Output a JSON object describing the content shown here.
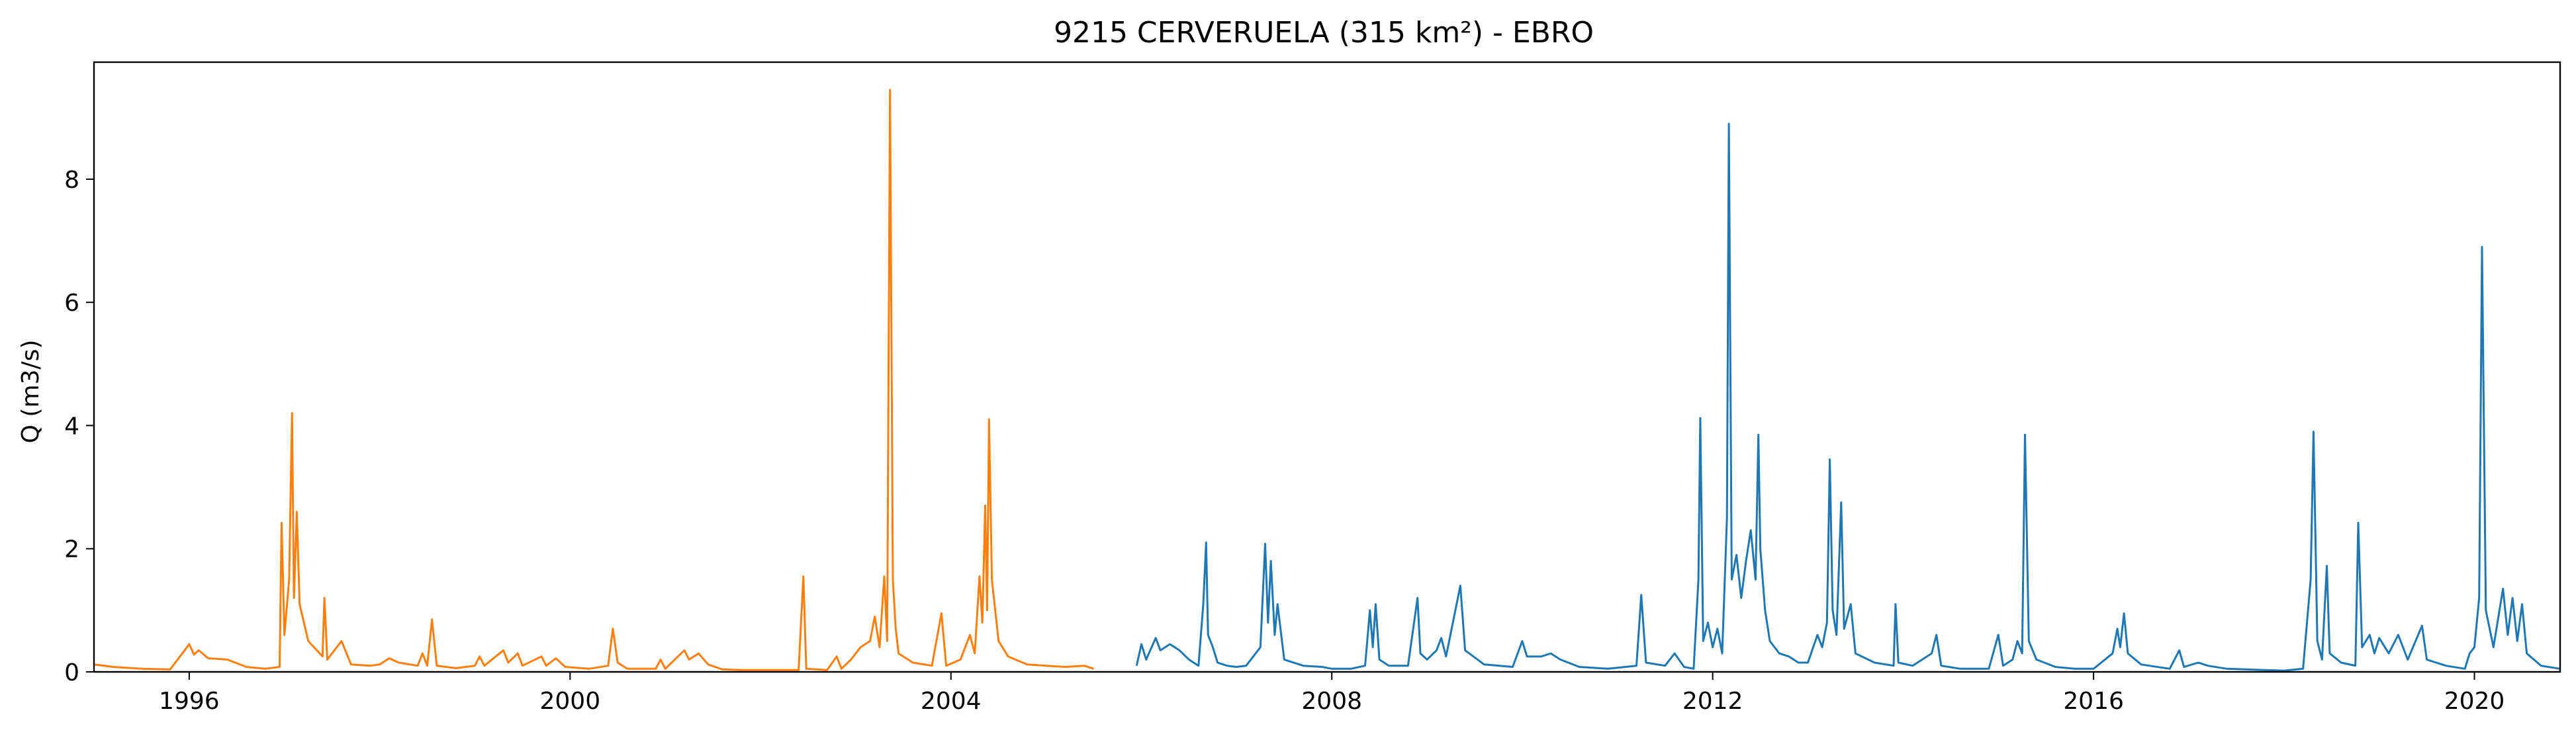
{
  "chart_data": {
    "type": "line",
    "title": "9215 CERVERUELA (315 km²) - EBRO",
    "xlabel": "",
    "ylabel": "Q (m3/s)",
    "xlim": [
      1995.0,
      2020.9
    ],
    "ylim": [
      0,
      9.9
    ],
    "grid": false,
    "x_ticks": [
      1996,
      2000,
      2004,
      2008,
      2012,
      2016,
      2020
    ],
    "x_tick_labels": [
      "1996",
      "2000",
      "2004",
      "2008",
      "2012",
      "2016",
      "2020"
    ],
    "y_ticks": [
      0,
      2,
      4,
      6,
      8
    ],
    "y_tick_labels": [
      "0",
      "2",
      "4",
      "6",
      "8"
    ],
    "series": [
      {
        "color": "#ff7f0e",
        "points": [
          [
            1995.0,
            0.12
          ],
          [
            1995.2,
            0.08
          ],
          [
            1995.5,
            0.05
          ],
          [
            1995.8,
            0.04
          ],
          [
            1996.0,
            0.45
          ],
          [
            1996.05,
            0.28
          ],
          [
            1996.1,
            0.35
          ],
          [
            1996.2,
            0.22
          ],
          [
            1996.4,
            0.2
          ],
          [
            1996.6,
            0.08
          ],
          [
            1996.8,
            0.05
          ],
          [
            1996.95,
            0.08
          ],
          [
            1996.97,
            2.42
          ],
          [
            1997.0,
            0.6
          ],
          [
            1997.05,
            1.5
          ],
          [
            1997.08,
            4.2
          ],
          [
            1997.1,
            1.2
          ],
          [
            1997.13,
            2.6
          ],
          [
            1997.16,
            1.1
          ],
          [
            1997.25,
            0.5
          ],
          [
            1997.4,
            0.25
          ],
          [
            1997.42,
            1.2
          ],
          [
            1997.45,
            0.2
          ],
          [
            1997.6,
            0.5
          ],
          [
            1997.7,
            0.12
          ],
          [
            1997.9,
            0.1
          ],
          [
            1998.0,
            0.12
          ],
          [
            1998.1,
            0.22
          ],
          [
            1998.2,
            0.15
          ],
          [
            1998.4,
            0.1
          ],
          [
            1998.45,
            0.3
          ],
          [
            1998.5,
            0.1
          ],
          [
            1998.55,
            0.85
          ],
          [
            1998.6,
            0.1
          ],
          [
            1998.8,
            0.06
          ],
          [
            1999.0,
            0.1
          ],
          [
            1999.05,
            0.25
          ],
          [
            1999.1,
            0.1
          ],
          [
            1999.3,
            0.35
          ],
          [
            1999.35,
            0.15
          ],
          [
            1999.45,
            0.3
          ],
          [
            1999.5,
            0.1
          ],
          [
            1999.7,
            0.25
          ],
          [
            1999.75,
            0.1
          ],
          [
            1999.85,
            0.22
          ],
          [
            1999.95,
            0.08
          ],
          [
            2000.2,
            0.05
          ],
          [
            2000.4,
            0.1
          ],
          [
            2000.45,
            0.7
          ],
          [
            2000.5,
            0.15
          ],
          [
            2000.6,
            0.05
          ],
          [
            2000.9,
            0.05
          ],
          [
            2000.95,
            0.2
          ],
          [
            2001.0,
            0.05
          ],
          [
            2001.2,
            0.35
          ],
          [
            2001.25,
            0.2
          ],
          [
            2001.35,
            0.3
          ],
          [
            2001.45,
            0.12
          ],
          [
            2001.6,
            0.04
          ],
          [
            2001.8,
            0.03
          ],
          [
            2002.0,
            0.03
          ],
          [
            2002.2,
            0.03
          ],
          [
            2002.4,
            0.03
          ],
          [
            2002.45,
            1.55
          ],
          [
            2002.48,
            0.05
          ],
          [
            2002.7,
            0.03
          ],
          [
            2002.8,
            0.25
          ],
          [
            2002.85,
            0.05
          ],
          [
            2002.95,
            0.2
          ],
          [
            2003.05,
            0.4
          ],
          [
            2003.15,
            0.5
          ],
          [
            2003.2,
            0.9
          ],
          [
            2003.25,
            0.4
          ],
          [
            2003.3,
            1.55
          ],
          [
            2003.33,
            0.5
          ],
          [
            2003.36,
            9.45
          ],
          [
            2003.39,
            1.5
          ],
          [
            2003.42,
            0.7
          ],
          [
            2003.45,
            0.3
          ],
          [
            2003.6,
            0.15
          ],
          [
            2003.8,
            0.1
          ],
          [
            2003.9,
            0.95
          ],
          [
            2003.95,
            0.1
          ],
          [
            2004.1,
            0.2
          ],
          [
            2004.2,
            0.6
          ],
          [
            2004.25,
            0.3
          ],
          [
            2004.3,
            1.55
          ],
          [
            2004.33,
            0.8
          ],
          [
            2004.36,
            2.7
          ],
          [
            2004.38,
            1.0
          ],
          [
            2004.4,
            4.1
          ],
          [
            2004.43,
            1.5
          ],
          [
            2004.5,
            0.5
          ],
          [
            2004.6,
            0.25
          ],
          [
            2004.8,
            0.12
          ],
          [
            2005.0,
            0.1
          ],
          [
            2005.2,
            0.08
          ],
          [
            2005.4,
            0.1
          ],
          [
            2005.5,
            0.05
          ]
        ]
      },
      {
        "color": "#1f77b4",
        "points": [
          [
            2005.95,
            0.1
          ],
          [
            2006.0,
            0.45
          ],
          [
            2006.05,
            0.2
          ],
          [
            2006.15,
            0.55
          ],
          [
            2006.2,
            0.35
          ],
          [
            2006.3,
            0.45
          ],
          [
            2006.4,
            0.35
          ],
          [
            2006.5,
            0.2
          ],
          [
            2006.6,
            0.1
          ],
          [
            2006.65,
            1.1
          ],
          [
            2006.68,
            2.1
          ],
          [
            2006.7,
            0.6
          ],
          [
            2006.75,
            0.4
          ],
          [
            2006.8,
            0.15
          ],
          [
            2006.9,
            0.1
          ],
          [
            2007.0,
            0.08
          ],
          [
            2007.1,
            0.1
          ],
          [
            2007.15,
            0.2
          ],
          [
            2007.25,
            0.4
          ],
          [
            2007.3,
            2.08
          ],
          [
            2007.33,
            0.8
          ],
          [
            2007.36,
            1.8
          ],
          [
            2007.4,
            0.6
          ],
          [
            2007.43,
            1.1
          ],
          [
            2007.5,
            0.2
          ],
          [
            2007.7,
            0.1
          ],
          [
            2007.9,
            0.08
          ],
          [
            2008.0,
            0.05
          ],
          [
            2008.2,
            0.05
          ],
          [
            2008.35,
            0.1
          ],
          [
            2008.4,
            1.0
          ],
          [
            2008.43,
            0.4
          ],
          [
            2008.46,
            1.1
          ],
          [
            2008.5,
            0.2
          ],
          [
            2008.6,
            0.1
          ],
          [
            2008.8,
            0.1
          ],
          [
            2008.9,
            1.2
          ],
          [
            2008.93,
            0.3
          ],
          [
            2009.0,
            0.2
          ],
          [
            2009.1,
            0.35
          ],
          [
            2009.15,
            0.55
          ],
          [
            2009.2,
            0.25
          ],
          [
            2009.35,
            1.4
          ],
          [
            2009.4,
            0.35
          ],
          [
            2009.6,
            0.12
          ],
          [
            2009.9,
            0.08
          ],
          [
            2010.0,
            0.5
          ],
          [
            2010.05,
            0.25
          ],
          [
            2010.2,
            0.25
          ],
          [
            2010.3,
            0.3
          ],
          [
            2010.4,
            0.2
          ],
          [
            2010.6,
            0.08
          ],
          [
            2010.9,
            0.05
          ],
          [
            2011.2,
            0.1
          ],
          [
            2011.25,
            1.25
          ],
          [
            2011.3,
            0.15
          ],
          [
            2011.5,
            0.1
          ],
          [
            2011.6,
            0.3
          ],
          [
            2011.7,
            0.08
          ],
          [
            2011.8,
            0.05
          ],
          [
            2011.85,
            1.5
          ],
          [
            2011.87,
            4.12
          ],
          [
            2011.9,
            0.5
          ],
          [
            2011.95,
            0.8
          ],
          [
            2012.0,
            0.4
          ],
          [
            2012.05,
            0.7
          ],
          [
            2012.1,
            0.3
          ],
          [
            2012.15,
            2.5
          ],
          [
            2012.17,
            8.9
          ],
          [
            2012.2,
            1.5
          ],
          [
            2012.25,
            1.9
          ],
          [
            2012.3,
            1.2
          ],
          [
            2012.35,
            1.8
          ],
          [
            2012.4,
            2.3
          ],
          [
            2012.45,
            1.5
          ],
          [
            2012.48,
            3.85
          ],
          [
            2012.5,
            2.0
          ],
          [
            2012.55,
            1.0
          ],
          [
            2012.6,
            0.5
          ],
          [
            2012.7,
            0.3
          ],
          [
            2012.8,
            0.25
          ],
          [
            2012.9,
            0.15
          ],
          [
            2013.0,
            0.15
          ],
          [
            2013.1,
            0.6
          ],
          [
            2013.15,
            0.4
          ],
          [
            2013.2,
            0.8
          ],
          [
            2013.23,
            3.45
          ],
          [
            2013.26,
            1.0
          ],
          [
            2013.3,
            0.6
          ],
          [
            2013.35,
            2.75
          ],
          [
            2013.38,
            0.7
          ],
          [
            2013.45,
            1.1
          ],
          [
            2013.5,
            0.3
          ],
          [
            2013.7,
            0.15
          ],
          [
            2013.9,
            0.1
          ],
          [
            2013.92,
            1.1
          ],
          [
            2013.95,
            0.15
          ],
          [
            2014.1,
            0.1
          ],
          [
            2014.3,
            0.3
          ],
          [
            2014.35,
            0.6
          ],
          [
            2014.4,
            0.1
          ],
          [
            2014.6,
            0.05
          ],
          [
            2014.9,
            0.05
          ],
          [
            2015.0,
            0.6
          ],
          [
            2015.05,
            0.1
          ],
          [
            2015.15,
            0.2
          ],
          [
            2015.2,
            0.5
          ],
          [
            2015.25,
            0.3
          ],
          [
            2015.28,
            3.85
          ],
          [
            2015.32,
            0.5
          ],
          [
            2015.4,
            0.2
          ],
          [
            2015.6,
            0.08
          ],
          [
            2015.8,
            0.05
          ],
          [
            2016.0,
            0.05
          ],
          [
            2016.2,
            0.3
          ],
          [
            2016.25,
            0.7
          ],
          [
            2016.28,
            0.4
          ],
          [
            2016.32,
            0.95
          ],
          [
            2016.36,
            0.3
          ],
          [
            2016.5,
            0.12
          ],
          [
            2016.8,
            0.05
          ],
          [
            2016.9,
            0.35
          ],
          [
            2016.95,
            0.08
          ],
          [
            2017.1,
            0.15
          ],
          [
            2017.2,
            0.1
          ],
          [
            2017.4,
            0.05
          ],
          [
            2017.8,
            0.03
          ],
          [
            2018.0,
            0.02
          ],
          [
            2018.2,
            0.05
          ],
          [
            2018.28,
            1.5
          ],
          [
            2018.31,
            3.9
          ],
          [
            2018.35,
            0.5
          ],
          [
            2018.4,
            0.2
          ],
          [
            2018.45,
            1.72
          ],
          [
            2018.48,
            0.3
          ],
          [
            2018.6,
            0.15
          ],
          [
            2018.75,
            0.1
          ],
          [
            2018.78,
            2.42
          ],
          [
            2018.82,
            0.4
          ],
          [
            2018.9,
            0.6
          ],
          [
            2018.95,
            0.3
          ],
          [
            2019.0,
            0.55
          ],
          [
            2019.1,
            0.3
          ],
          [
            2019.2,
            0.6
          ],
          [
            2019.3,
            0.2
          ],
          [
            2019.45,
            0.75
          ],
          [
            2019.5,
            0.2
          ],
          [
            2019.7,
            0.1
          ],
          [
            2019.9,
            0.05
          ],
          [
            2019.95,
            0.3
          ],
          [
            2020.0,
            0.4
          ],
          [
            2020.05,
            1.2
          ],
          [
            2020.08,
            6.9
          ],
          [
            2020.12,
            1.0
          ],
          [
            2020.2,
            0.4
          ],
          [
            2020.3,
            1.35
          ],
          [
            2020.35,
            0.6
          ],
          [
            2020.4,
            1.2
          ],
          [
            2020.45,
            0.5
          ],
          [
            2020.5,
            1.1
          ],
          [
            2020.55,
            0.3
          ],
          [
            2020.7,
            0.1
          ],
          [
            2020.9,
            0.05
          ]
        ]
      }
    ]
  }
}
